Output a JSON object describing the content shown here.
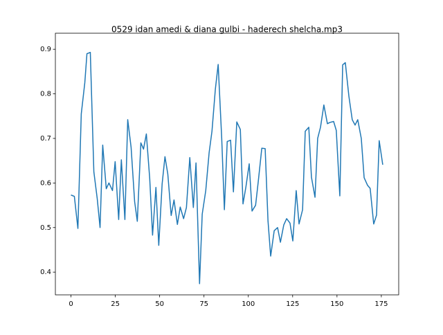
{
  "chart_data": {
    "type": "line",
    "title": "0529 idan amedi & diana gulbi - haderech shelcha.mp3",
    "x": [
      0,
      1.9,
      3.9,
      5.8,
      7.8,
      9.0,
      10.9,
      12.9,
      14.8,
      16.4,
      17.9,
      19.9,
      21.4,
      23.4,
      24.9,
      26.9,
      28.4,
      30.4,
      32.0,
      33.9,
      35.9,
      37.4,
      39.4,
      40.9,
      42.5,
      44.4,
      46.0,
      47.9,
      49.5,
      51.4,
      53.0,
      54.6,
      56.5,
      58.1,
      60.0,
      61.6,
      63.5,
      65.1,
      67.0,
      69.0,
      70.5,
      72.5,
      74.0,
      76.0,
      77.9,
      79.5,
      81.4,
      83.0,
      85.0,
      86.5,
      88.1,
      90.0,
      91.6,
      93.5,
      95.5,
      97.0,
      98.6,
      100.5,
      102.1,
      104.1,
      105.6,
      107.6,
      109.5,
      111.1,
      112.6,
      114.6,
      116.5,
      118.1,
      120.0,
      121.6,
      123.5,
      125.1,
      127.0,
      128.6,
      130.6,
      132.1,
      134.1,
      135.6,
      137.6,
      139.1,
      140.7,
      142.6,
      144.6,
      146.1,
      148.1,
      149.6,
      151.6,
      153.2,
      154.7,
      156.7,
      158.6,
      160.2,
      161.7,
      163.7,
      165.3,
      167.2,
      168.7,
      170.7,
      172.3,
      173.8,
      175.8
    ],
    "series": [
      {
        "color": "#1f77b4",
        "values": [
          0.573,
          0.57,
          0.498,
          0.755,
          0.825,
          0.89,
          0.893,
          0.625,
          0.565,
          0.5,
          0.685,
          0.587,
          0.6,
          0.583,
          0.648,
          0.518,
          0.652,
          0.518,
          0.742,
          0.68,
          0.558,
          0.514,
          0.69,
          0.676,
          0.71,
          0.61,
          0.483,
          0.59,
          0.46,
          0.598,
          0.659,
          0.62,
          0.527,
          0.562,
          0.507,
          0.546,
          0.52,
          0.545,
          0.657,
          0.545,
          0.645,
          0.374,
          0.53,
          0.583,
          0.668,
          0.716,
          0.81,
          0.866,
          0.7,
          0.54,
          0.693,
          0.696,
          0.58,
          0.737,
          0.72,
          0.553,
          0.59,
          0.643,
          0.537,
          0.55,
          0.603,
          0.678,
          0.677,
          0.515,
          0.436,
          0.493,
          0.5,
          0.467,
          0.506,
          0.52,
          0.51,
          0.47,
          0.583,
          0.508,
          0.54,
          0.716,
          0.725,
          0.613,
          0.568,
          0.7,
          0.725,
          0.775,
          0.733,
          0.736,
          0.738,
          0.718,
          0.571,
          0.865,
          0.87,
          0.795,
          0.742,
          0.73,
          0.742,
          0.7,
          0.612,
          0.595,
          0.588,
          0.508,
          0.528,
          0.695,
          0.641
        ]
      }
    ],
    "xlim": [
      -8.8,
      184.8
    ],
    "ylim": [
      0.349,
      0.936
    ],
    "xticks": [
      0,
      25,
      50,
      75,
      100,
      125,
      150,
      175
    ],
    "yticks": [
      0.4,
      0.5,
      0.6,
      0.7,
      0.8,
      0.9
    ]
  }
}
